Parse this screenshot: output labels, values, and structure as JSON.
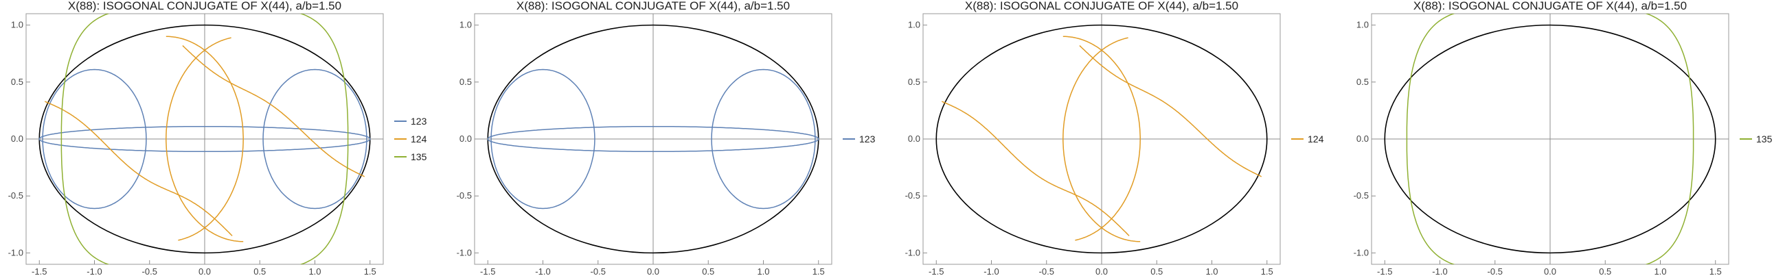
{
  "chart_data": [
    {
      "type": "line",
      "title": "X(88): ISOGONAL CONJUGATE OF X(44), a/b=1.50",
      "xlim": [
        -1.62,
        1.62
      ],
      "ylim": [
        -1.1,
        1.1
      ],
      "xticks": [
        "-1.5",
        "-1.0",
        "-0.5",
        "0.0",
        "0.5",
        "1.0",
        "1.5"
      ],
      "yticks": [
        "-1.0",
        "-0.5",
        "0.0",
        "0.5",
        "1.0"
      ],
      "legend_position": "right",
      "ellipse": {
        "a": 1.5,
        "b": 1.0,
        "color": "#000000"
      },
      "series": [
        {
          "name": "123",
          "color": "#5e81b5",
          "kind": "X123"
        },
        {
          "name": "124",
          "color": "#e19c24",
          "kind": "X124"
        },
        {
          "name": "135",
          "color": "#8fb032",
          "kind": "X135"
        }
      ]
    },
    {
      "type": "line",
      "title": "X(88): ISOGONAL CONJUGATE OF X(44), a/b=1.50",
      "xlim": [
        -1.62,
        1.62
      ],
      "ylim": [
        -1.1,
        1.1
      ],
      "xticks": [
        "-1.5",
        "-1.0",
        "-0.5",
        "0.0",
        "0.5",
        "1.0",
        "1.5"
      ],
      "yticks": [
        "-1.0",
        "-0.5",
        "0.0",
        "0.5",
        "1.0"
      ],
      "legend_position": "right",
      "ellipse": {
        "a": 1.5,
        "b": 1.0,
        "color": "#000000"
      },
      "series": [
        {
          "name": "123",
          "color": "#5e81b5",
          "kind": "X123"
        }
      ]
    },
    {
      "type": "line",
      "title": "X(88): ISOGONAL CONJUGATE OF X(44), a/b=1.50",
      "xlim": [
        -1.62,
        1.62
      ],
      "ylim": [
        -1.1,
        1.1
      ],
      "xticks": [
        "-1.5",
        "-1.0",
        "-0.5",
        "0.0",
        "0.5",
        "1.0",
        "1.5"
      ],
      "yticks": [
        "-1.0",
        "-0.5",
        "0.0",
        "0.5",
        "1.0"
      ],
      "legend_position": "right",
      "ellipse": {
        "a": 1.5,
        "b": 1.0,
        "color": "#000000"
      },
      "series": [
        {
          "name": "124",
          "color": "#e19c24",
          "kind": "X124"
        }
      ]
    },
    {
      "type": "line",
      "title": "X(88): ISOGONAL CONJUGATE OF X(44), a/b=1.50",
      "xlim": [
        -1.62,
        1.62
      ],
      "ylim": [
        -1.1,
        1.1
      ],
      "xticks": [
        "-1.5",
        "-1.0",
        "-0.5",
        "0.0",
        "0.5",
        "1.0",
        "1.5"
      ],
      "yticks": [
        "-1.0",
        "-0.5",
        "0.0",
        "0.5",
        "1.0"
      ],
      "legend_position": "right",
      "ellipse": {
        "a": 1.5,
        "b": 1.0,
        "color": "#000000"
      },
      "series": [
        {
          "name": "135",
          "color": "#8fb032",
          "kind": "X135"
        }
      ]
    }
  ]
}
